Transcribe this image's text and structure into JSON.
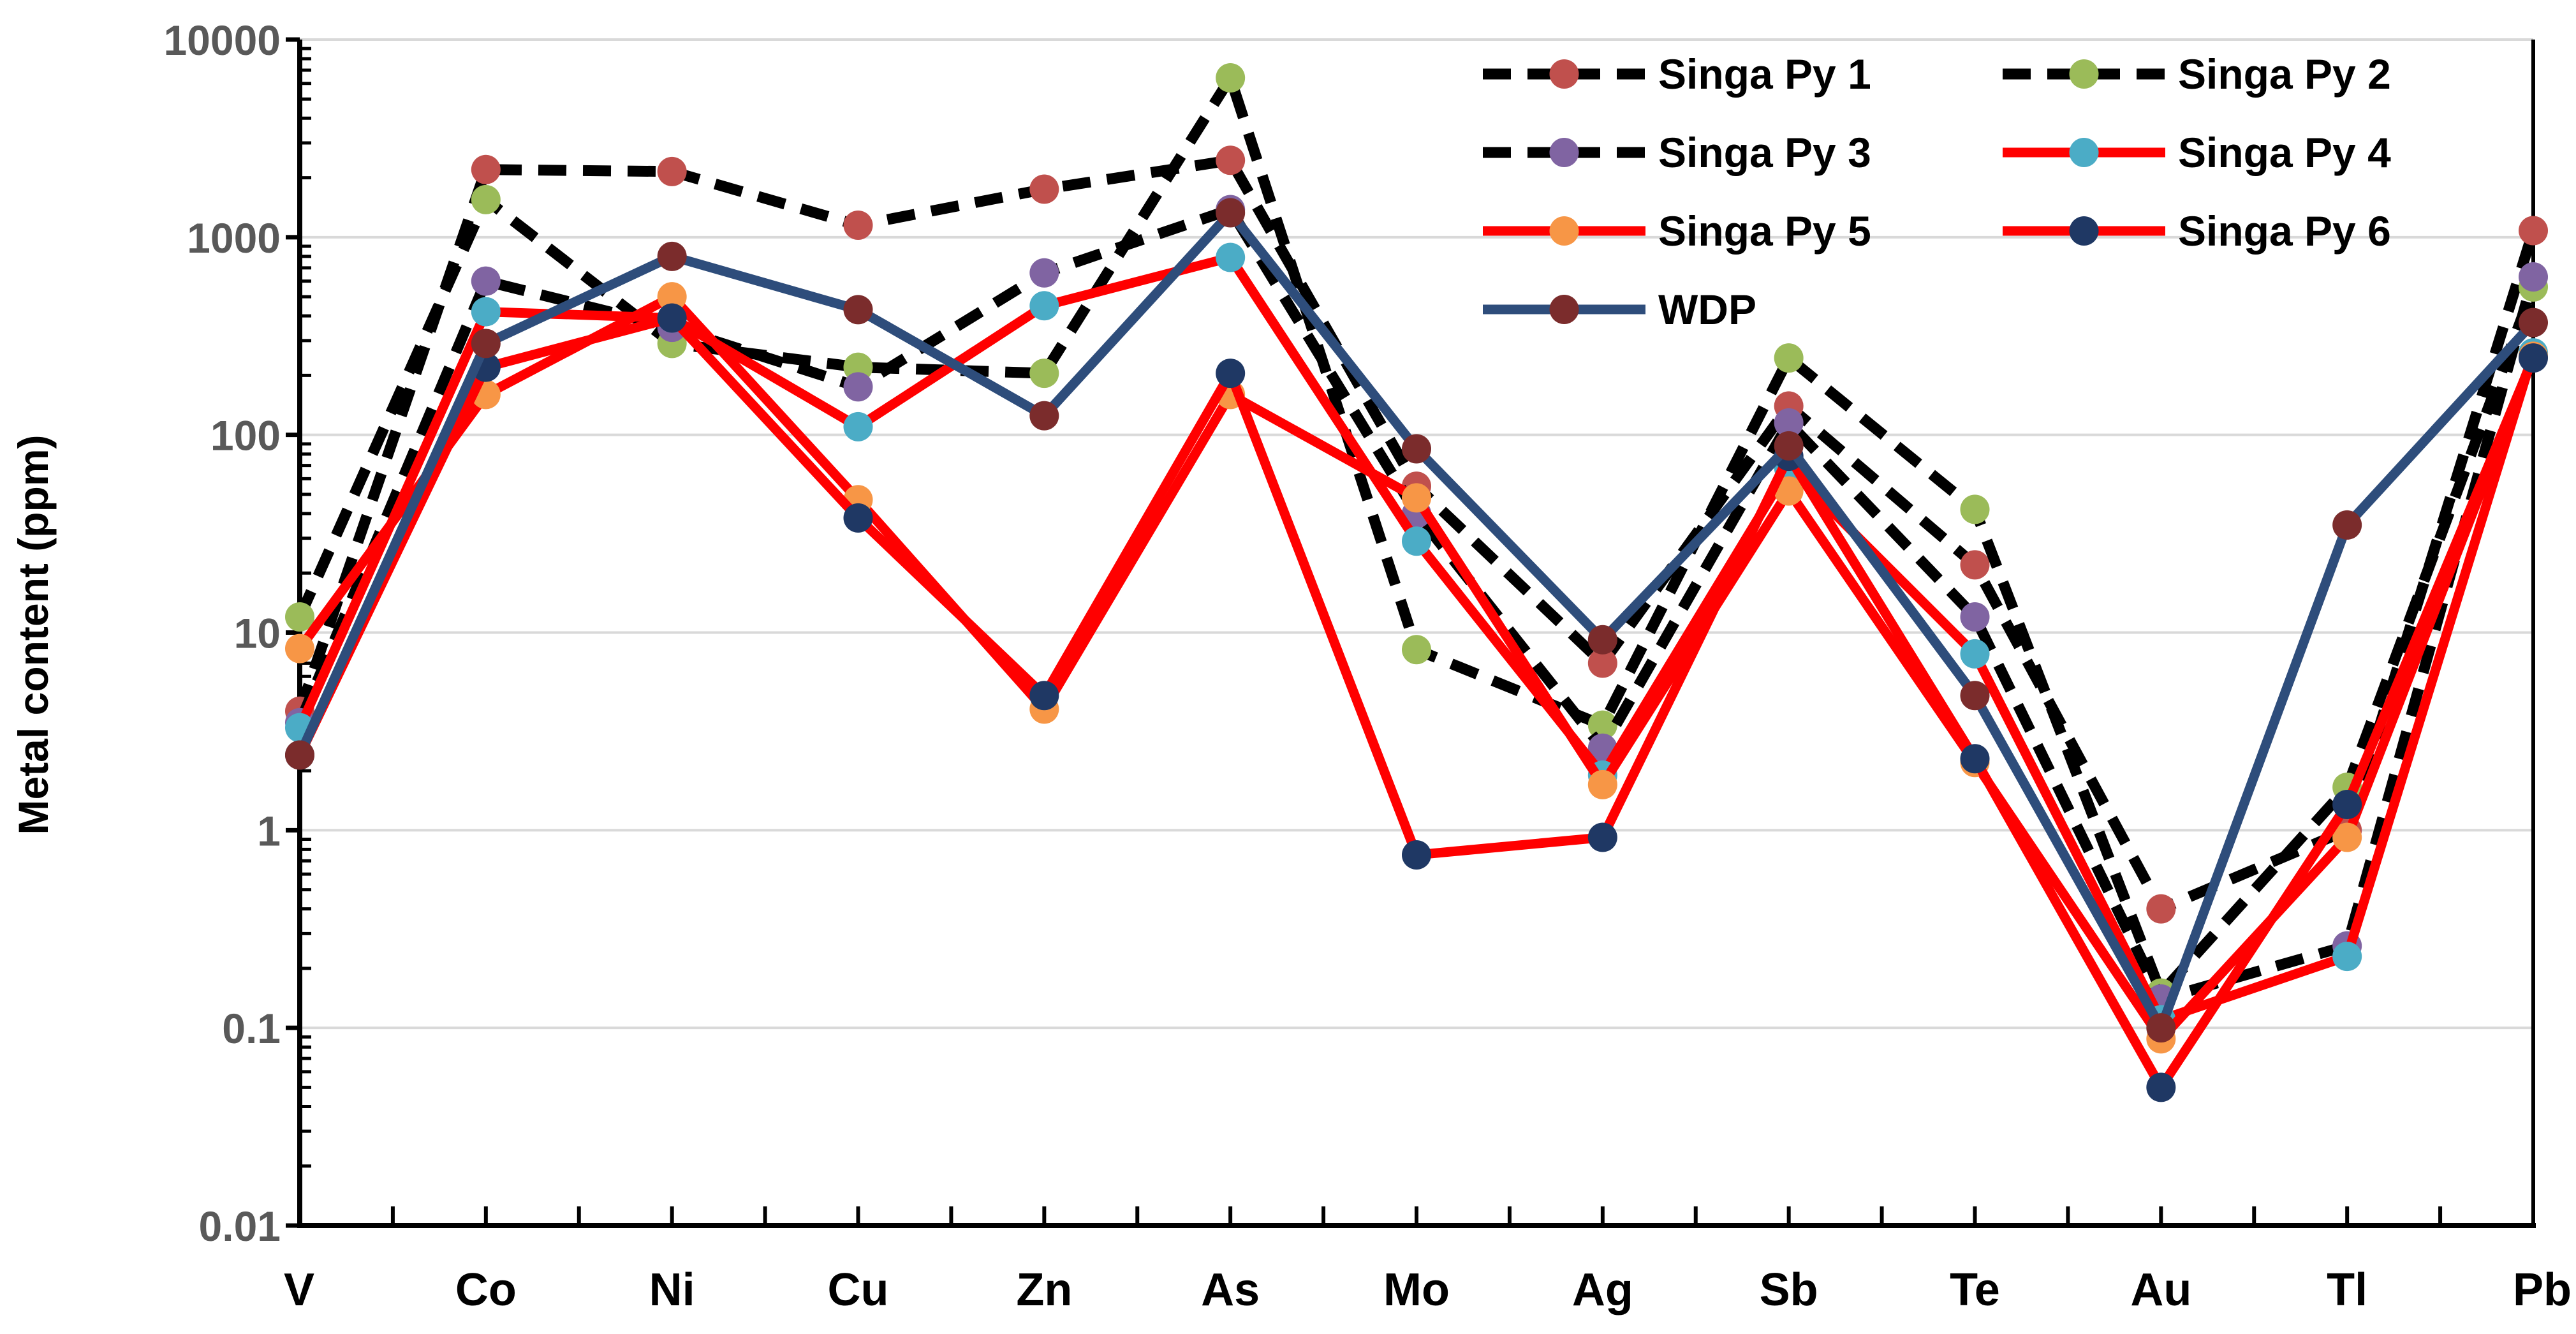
{
  "chart_data": {
    "type": "line",
    "title": "",
    "xlabel": "",
    "ylabel": "Metal content (ppm)",
    "yscale": "log",
    "ylim": [
      0.01,
      10000
    ],
    "ytick_labels": [
      "0.01",
      "0.1",
      "1",
      "10",
      "100",
      "1000",
      "10000"
    ],
    "grid": "horizontal",
    "legend_position": "top-right",
    "categories": [
      "V",
      "Co",
      "Ni",
      "Cu",
      "Zn",
      "As",
      "Mo",
      "Ag",
      "Sb",
      "Te",
      "Au",
      "Tl",
      "Pb"
    ],
    "series": [
      {
        "name": "Singa Py 1",
        "line_color": "#000000",
        "line_style": "dashed",
        "marker_color": "#C0504D",
        "values": [
          4,
          2200,
          2150,
          1150,
          1750,
          2450,
          55,
          7,
          140,
          22,
          0.4,
          1.0,
          1080
        ]
      },
      {
        "name": "Singa Py 2",
        "line_color": "#000000",
        "line_style": "dashed",
        "marker_color": "#9BBB59",
        "values": [
          12,
          1550,
          290,
          220,
          205,
          6400,
          8.2,
          3.4,
          245,
          42,
          0.15,
          1.65,
          560
        ]
      },
      {
        "name": "Singa Py 3",
        "line_color": "#000000",
        "line_style": "dashed",
        "marker_color": "#8064A2",
        "values": [
          3.5,
          600,
          350,
          175,
          660,
          1380,
          40,
          2.6,
          115,
          12,
          0.14,
          0.26,
          630
        ]
      },
      {
        "name": "Singa Py 4",
        "line_color": "#FF0000",
        "line_style": "solid",
        "marker_color": "#4BACC6",
        "values": [
          3.3,
          420,
          390,
          110,
          450,
          790,
          29,
          1.9,
          68,
          7.8,
          0.11,
          0.23,
          260
        ]
      },
      {
        "name": "Singa Py 5",
        "line_color": "#FF0000",
        "line_style": "solid",
        "marker_color": "#F79646",
        "values": [
          8.3,
          160,
          500,
          47,
          4.1,
          160,
          48,
          1.7,
          52,
          2.2,
          0.088,
          0.92,
          250
        ]
      },
      {
        "name": "Singa Py 6",
        "line_color": "#FF0000",
        "line_style": "solid",
        "marker_color": "#1F3864",
        "values": [
          2.4,
          220,
          390,
          38,
          4.8,
          205,
          0.75,
          0.92,
          78,
          2.3,
          0.05,
          1.35,
          245
        ]
      },
      {
        "name": "WDP",
        "line_color": "#2E4D7B",
        "line_style": "solid",
        "marker_color": "#7B2C2C",
        "values": [
          2.4,
          290,
          800,
          430,
          125,
          1330,
          85,
          9.2,
          88,
          4.8,
          0.1,
          35,
          370
        ]
      }
    ]
  }
}
